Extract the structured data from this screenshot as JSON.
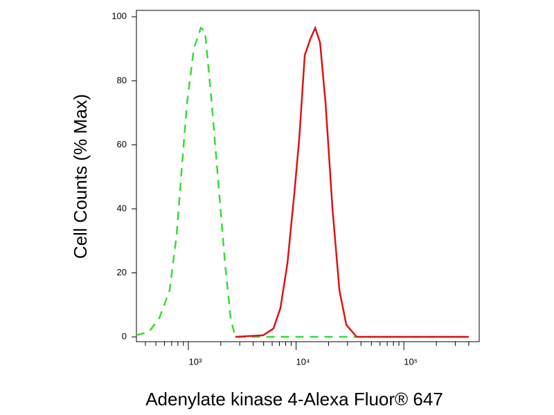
{
  "chart_data": {
    "type": "line",
    "xlabel": "Adenylate kinase 4-Alexa Fluor® 647",
    "ylabel": "Cell Counts (% Max)",
    "xscale": "log",
    "xlim": [
      330,
      500000
    ],
    "ylim": [
      -1.5,
      102
    ],
    "yticks": [
      0,
      20,
      40,
      60,
      80,
      100
    ],
    "xticks": [
      {
        "value": 1000,
        "label": "10³"
      },
      {
        "value": 10000,
        "label": "10⁴"
      },
      {
        "value": 100000,
        "label": "10⁵"
      }
    ],
    "xminorticks": [
      400,
      500,
      600,
      700,
      800,
      900,
      2000,
      3000,
      4000,
      5000,
      6000,
      7000,
      8000,
      9000,
      20000,
      30000,
      40000,
      50000,
      60000,
      70000,
      80000,
      90000,
      200000,
      300000,
      400000
    ],
    "series": [
      {
        "color": "#33dd33",
        "dash": true,
        "x": [
          330,
          430,
          537,
          670,
          778,
          863,
          971,
          1125,
          1305,
          1427,
          1630,
          1890,
          2190,
          2470,
          2730,
          400000
        ],
        "values": [
          0.6,
          1.5,
          5.8,
          14.5,
          31.7,
          51.2,
          72.8,
          90,
          96.5,
          95.5,
          75,
          49,
          23,
          5.8,
          0,
          0
        ]
      },
      {
        "color": "#dd1111",
        "dash": false,
        "x": [
          2730,
          4950,
          6160,
          7160,
          8310,
          9640,
          10700,
          12030,
          13540,
          15030,
          16680,
          18770,
          21760,
          25250,
          29280,
          36530,
          400000
        ],
        "values": [
          0,
          0.5,
          2.6,
          9,
          23,
          45,
          62,
          88,
          93,
          96.5,
          92,
          73,
          40,
          14.5,
          3.7,
          0,
          0
        ]
      }
    ]
  }
}
